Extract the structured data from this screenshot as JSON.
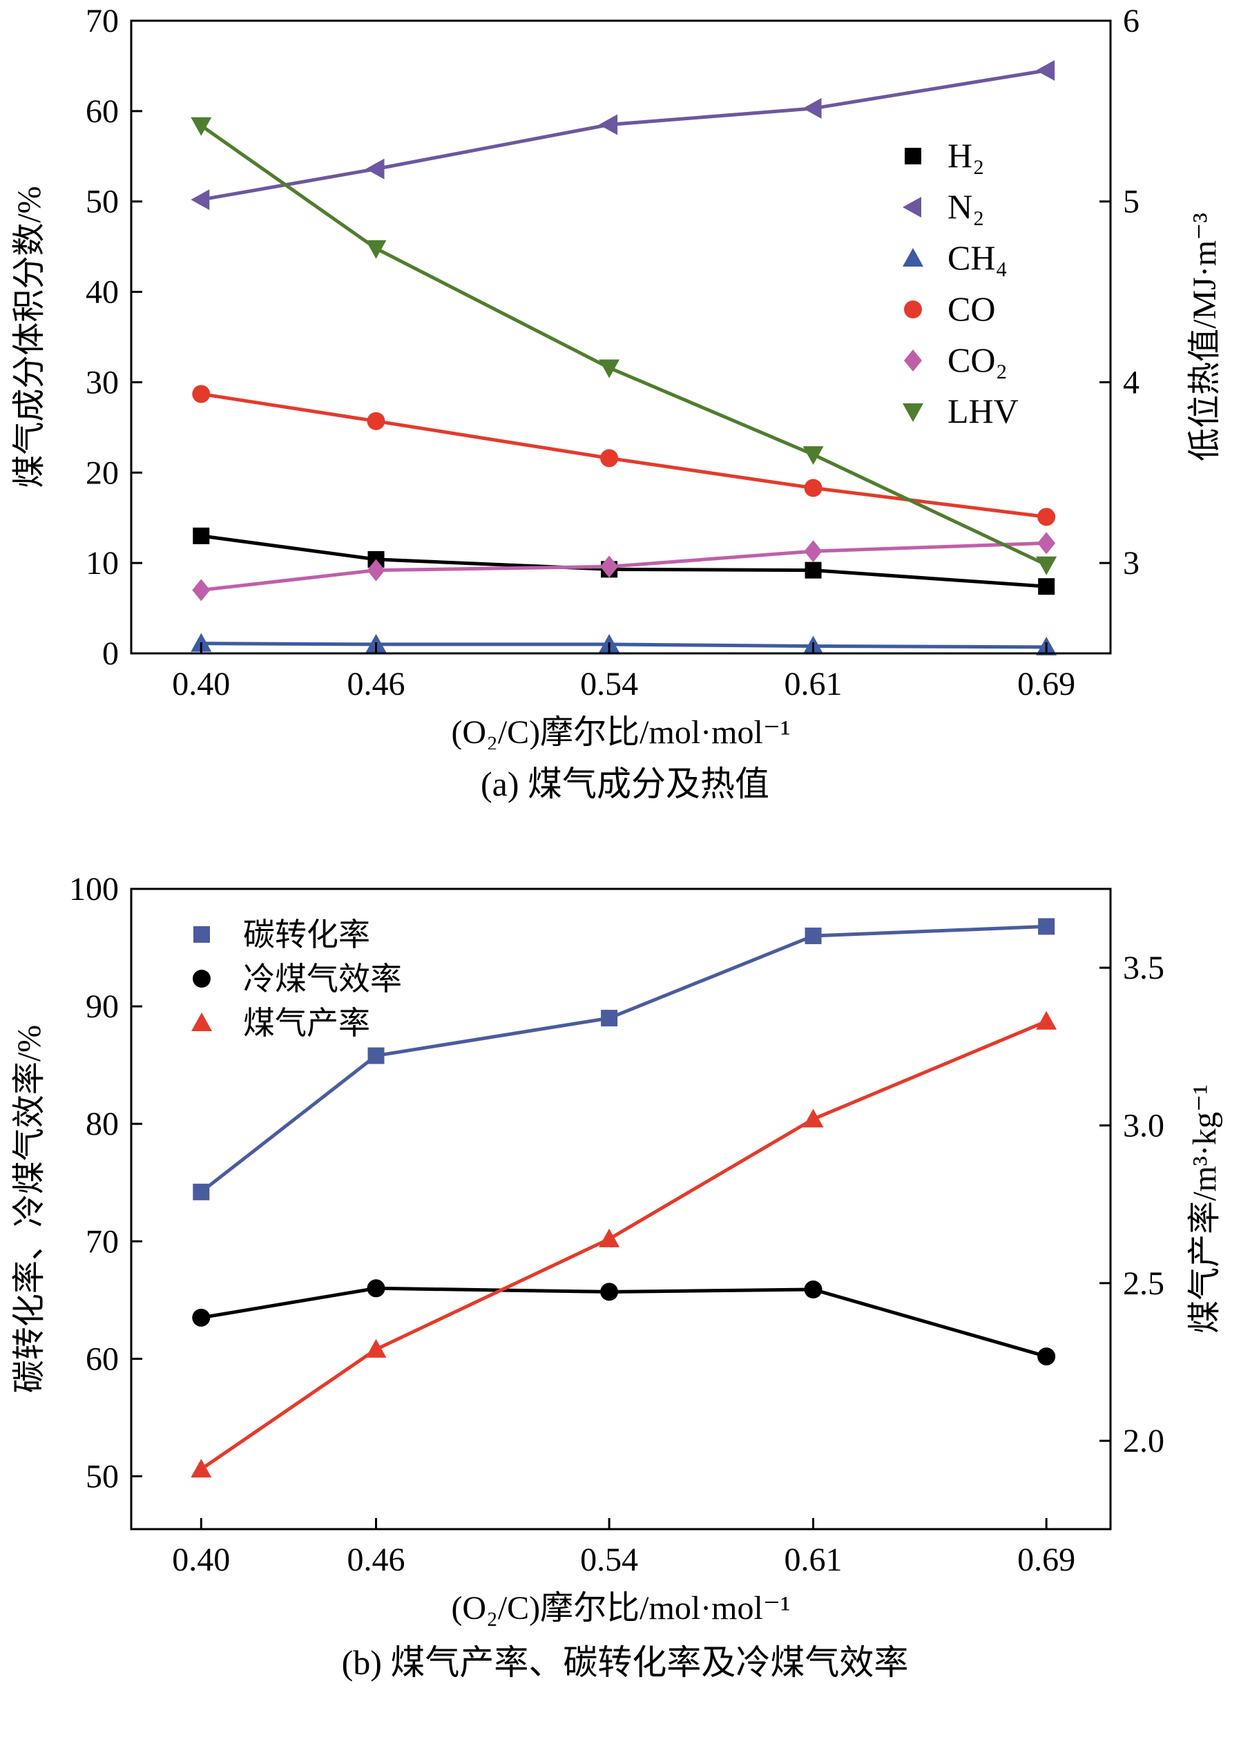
{
  "chart_data": [
    {
      "id": "a",
      "type": "line",
      "caption": "(a) 煤气成分及热值",
      "xlabel": "(O₂/C)摩尔比/mol·mol⁻¹",
      "ylabel_left": "煤气成分体积分数/%",
      "ylabel_right": "低位热值/MJ·m⁻³",
      "x": [
        0.4,
        0.46,
        0.54,
        0.61,
        0.69
      ],
      "x_tick_labels": [
        "0.40",
        "0.46",
        "0.54",
        "0.61",
        "0.69"
      ],
      "xlim": [
        0.376,
        0.712
      ],
      "ylim_left": [
        0,
        70
      ],
      "yticks_left": [
        0,
        10,
        20,
        30,
        40,
        50,
        60,
        70
      ],
      "ylim_right": [
        2.5,
        6.0
      ],
      "yticks_right": [
        {
          "v": 3,
          "label": "3"
        },
        {
          "v": 4,
          "label": "4"
        },
        {
          "v": 5,
          "label": "5"
        },
        {
          "v": 6,
          "label": "6"
        }
      ],
      "grid": false,
      "legend_position": "upper-right",
      "series": [
        {
          "key": "h2",
          "name": "H₂",
          "axis": "left",
          "marker": "square",
          "color": "#000000",
          "values": [
            13.0,
            10.4,
            9.3,
            9.2,
            7.4
          ]
        },
        {
          "key": "n2",
          "name": "N₂",
          "axis": "left",
          "marker": "triangle-left",
          "color": "#6C57A0",
          "values": [
            50.2,
            53.6,
            58.5,
            60.3,
            64.5
          ]
        },
        {
          "key": "ch4",
          "name": "CH₄",
          "axis": "left",
          "marker": "triangle-up",
          "color": "#3C5BA3",
          "values": [
            1.1,
            1.0,
            1.0,
            0.8,
            0.7
          ]
        },
        {
          "key": "co",
          "name": "CO",
          "axis": "left",
          "marker": "circle",
          "color": "#E43A2B",
          "values": [
            28.7,
            25.7,
            21.6,
            18.3,
            15.1
          ]
        },
        {
          "key": "co2",
          "name": "CO₂",
          "axis": "left",
          "marker": "diamond",
          "color": "#C05FA9",
          "values": [
            7.0,
            9.2,
            9.6,
            11.3,
            12.2
          ]
        },
        {
          "key": "lhv",
          "name": "LHV",
          "axis": "right",
          "marker": "triangle-down",
          "color": "#4F7D2E",
          "values": [
            5.42,
            4.74,
            4.08,
            3.6,
            2.99
          ]
        }
      ]
    },
    {
      "id": "b",
      "type": "line",
      "caption": "(b) 煤气产率、碳转化率及冷煤气效率",
      "xlabel": "(O₂/C)摩尔比/mol·mol⁻¹",
      "ylabel_left": "碳转化率、冷煤气效率/%",
      "ylabel_right": "煤气产率/m³·kg⁻¹",
      "x": [
        0.4,
        0.46,
        0.54,
        0.61,
        0.69
      ],
      "x_tick_labels": [
        "0.40",
        "0.46",
        "0.54",
        "0.61",
        "0.69"
      ],
      "xlim": [
        0.376,
        0.712
      ],
      "ylim_left": [
        45.5,
        100
      ],
      "yticks_left": [
        50,
        60,
        70,
        80,
        90,
        100
      ],
      "ylim_right": [
        1.72,
        3.75
      ],
      "yticks_right": [
        {
          "v": 2.0,
          "label": "2.0"
        },
        {
          "v": 2.5,
          "label": "2.5"
        },
        {
          "v": 3.0,
          "label": "3.0"
        },
        {
          "v": 3.5,
          "label": "3.5"
        }
      ],
      "grid": false,
      "legend_position": "upper-left",
      "series": [
        {
          "key": "carbon-conversion",
          "name": "碳转化率",
          "axis": "left",
          "marker": "square",
          "color": "#4A5C9E",
          "values": [
            74.2,
            85.8,
            89.0,
            96.0,
            96.8
          ]
        },
        {
          "key": "cold-gas-efficiency",
          "name": "冷煤气效率",
          "axis": "left",
          "marker": "circle",
          "color": "#000000",
          "values": [
            63.5,
            66.0,
            65.7,
            65.9,
            60.2
          ]
        },
        {
          "key": "gas-yield",
          "name": "煤气产率",
          "axis": "right",
          "marker": "triangle-up",
          "color": "#E43A2B",
          "values": [
            1.91,
            2.29,
            2.64,
            3.02,
            3.33
          ]
        }
      ]
    }
  ]
}
